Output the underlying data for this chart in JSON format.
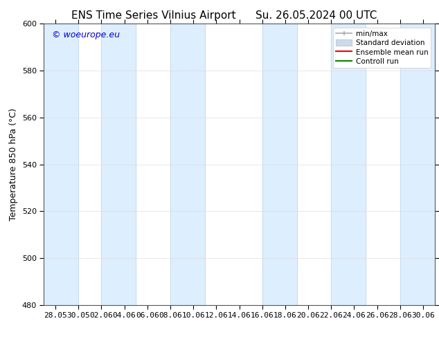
{
  "title_left": "ENS Time Series Vilnius Airport",
  "title_right": "Su. 26.05.2024 00 UTC",
  "ylabel": "Temperature 850 hPa (°C)",
  "watermark": "© woeurope.eu",
  "ylim": [
    480,
    600
  ],
  "yticks": [
    480,
    500,
    520,
    540,
    560,
    580,
    600
  ],
  "xtick_labels": [
    "28.05",
    "30.05",
    "02.06",
    "04.06",
    "06.06",
    "08.06",
    "10.06",
    "12.06",
    "14.06",
    "16.06",
    "18.06",
    "20.06",
    "22.06",
    "24.06",
    "26.06",
    "28.06",
    "30.06"
  ],
  "shaded_band_color": "#ddeeff",
  "background_color": "#ffffff",
  "legend_items": [
    {
      "label": "min/max",
      "color": "#999999"
    },
    {
      "label": "Standard deviation",
      "color": "#ccdaee"
    },
    {
      "label": "Ensemble mean run",
      "color": "#ff0000"
    },
    {
      "label": "Controll run",
      "color": "#008800"
    }
  ],
  "title_fontsize": 11,
  "axis_fontsize": 9,
  "tick_fontsize": 8,
  "watermark_fontsize": 9
}
